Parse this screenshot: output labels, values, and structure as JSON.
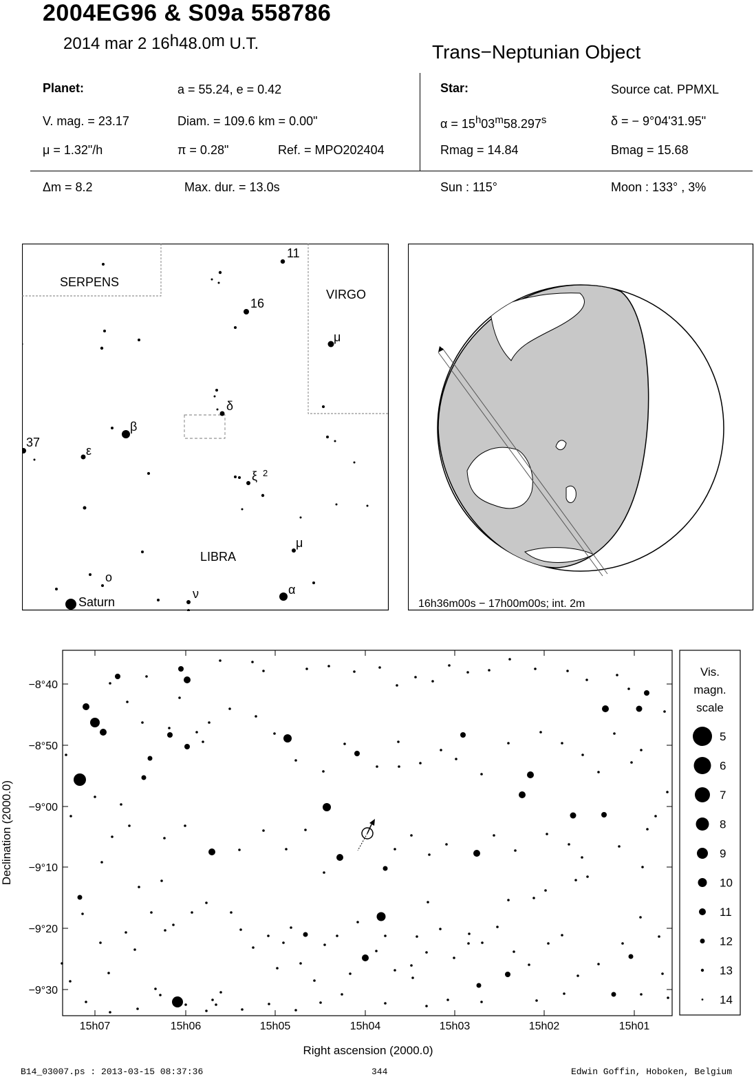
{
  "header": {
    "title": "2004EG96  &  S09a 558786",
    "date_prefix": "2014 mar  2  16",
    "date_h": "h",
    "date_min": "48.0",
    "date_m": "m",
    "date_suffix": " U.T.",
    "object_type": "Trans−Neptunian Object"
  },
  "planet": {
    "heading": "Planet:",
    "orbit": "a = 55.24, e = 0.42",
    "vmag": "V. mag. = 23.17",
    "diam": "Diam. = 109.6 km = 0.00\"",
    "mu": "μ =  1.32\"/h",
    "pi": "π =  0.28\"",
    "ref": "Ref. = MPO202404"
  },
  "star": {
    "heading": "Star:",
    "source": "Source cat.  PPMXL",
    "ra_prefix": "α = 15",
    "ra_h": "h",
    "ra_min": "03",
    "ra_m": "m",
    "ra_sec": "58.297",
    "ra_s": "s",
    "dec": "δ = − 9°04'31.95\"",
    "rmag": "Rmag = 14.84",
    "bmag": "Bmag = 15.68"
  },
  "event": {
    "dm": "Δm = 8.2",
    "maxdur": "Max. dur. = 13.0s",
    "sun": "Sun : 115°",
    "moon": "Moon : 133° ,  3%"
  },
  "finder": {
    "labels": {
      "serpens": "SERPENS",
      "virgo": "VIRGO",
      "libra": "LIBRA",
      "saturn": "Saturn",
      "n11": "11",
      "n16": "16",
      "n37": "37",
      "mu_vir": "μ",
      "delta": "δ",
      "beta": "β",
      "epsilon": "ε",
      "xi2": "ξ",
      "xi2_sup": "2",
      "mu_lib": "μ",
      "omicron": "o",
      "nu": "ν",
      "alpha": "α"
    }
  },
  "globe": {
    "caption": "16h36m00s − 17h00m00s; int.  2m",
    "colors": {
      "night": "#c8c8c8",
      "land": "#ffffff"
    }
  },
  "chart": {
    "ylabel": "Declination (2000.0)",
    "xlabel": "Right ascension (2000.0)",
    "yticks": [
      "−8°40",
      "−8°50",
      "−9°00",
      "−9°10",
      "−9°20",
      "−9°30"
    ],
    "xticks": [
      "15h07",
      "15h06",
      "15h05",
      "15h04",
      "15h03",
      "15h02",
      "15h01"
    ]
  },
  "scale": {
    "title1": "Vis.",
    "title2": "magn.",
    "title3": "scale",
    "mags": [
      "5",
      "6",
      "7",
      "8",
      "9",
      "10",
      "11",
      "12",
      "13",
      "14"
    ]
  },
  "footer": {
    "left": "B14_03007.ps : 2013-03-15 08:37:36",
    "center": "344",
    "right": "Edwin Goffin, Hoboken, Belgium"
  }
}
